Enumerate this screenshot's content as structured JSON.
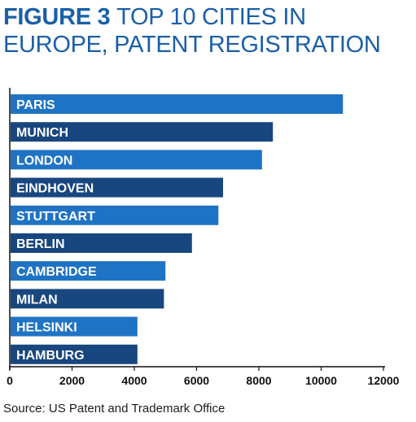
{
  "title": {
    "figure": "FIGURE",
    "number": "3",
    "text": "TOP 10 CITIES IN EUROPE, PATENT REGISTRATION"
  },
  "source": "Source: US Patent and Trademark Office",
  "colors": {
    "title": "#1a5fa8",
    "bar_light": "#1f73c4",
    "bar_dark": "#18467f",
    "axis": "#111111",
    "bar_label": "#ffffff"
  },
  "chart_data": {
    "type": "bar",
    "orientation": "horizontal",
    "categories": [
      "PARIS",
      "MUNICH",
      "LONDON",
      "EINDHOVEN",
      "STUTTGART",
      "BERLIN",
      "CAMBRIDGE",
      "MILAN",
      "HELSINKI",
      "HAMBURG"
    ],
    "values": [
      10700,
      8450,
      8100,
      6850,
      6700,
      5850,
      5000,
      4950,
      4100,
      4100
    ],
    "xlim": [
      0,
      12000
    ],
    "xticks": [
      0,
      2000,
      4000,
      6000,
      8000,
      10000,
      12000
    ],
    "grid": false,
    "legend": "none"
  }
}
